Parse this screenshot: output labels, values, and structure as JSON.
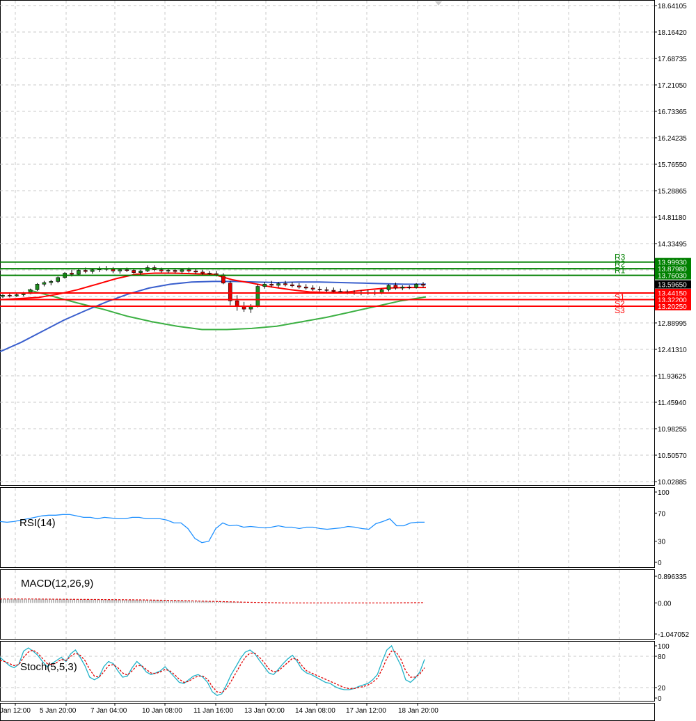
{
  "colors": {
    "resistance": "#008000",
    "support": "#ff0000",
    "price_label_bg": "#000000",
    "ma_fast": "#ff0000",
    "ma_mid": "#3a5fcd",
    "ma_slow": "#3cb043",
    "candle_up": "#1e8c1e",
    "candle_down": "#e00000",
    "rsi": "#1e90ff",
    "macd_signal": "#e00000",
    "stoch_main": "#20b2c8",
    "stoch_signal": "#e00000",
    "grid": "#c8c8c8"
  },
  "chart_data": [
    {
      "type": "candlestick",
      "name": "price",
      "grid": true,
      "ylim": [
        10.02885,
        18.64105
      ],
      "y_ticks": [
        "18.64105",
        "18.16420",
        "17.68735",
        "17.21050",
        "16.73365",
        "16.24235",
        "15.76550",
        "15.28865",
        "14.81180",
        "14.33495",
        "13.85810",
        "13.38125",
        "12.88995",
        "12.41310",
        "11.93625",
        "11.45940",
        "10.98255",
        "10.50570",
        "10.02885"
      ],
      "x_labels": [
        "Jan 12:00",
        "5 Jan 20:00",
        "7 Jan 04:00",
        "10 Jan 08:00",
        "11 Jan 16:00",
        "13 Jan 00:00",
        "14 Jan 08:00",
        "17 Jan 12:00",
        "18 Jan 20:00"
      ],
      "current_price": {
        "value": 13.5965,
        "label": "13.59650"
      },
      "levels": [
        {
          "name": "R3",
          "value": 13.9993,
          "label": "13.99930",
          "kind": "resistance"
        },
        {
          "name": "R2",
          "value": 13.8798,
          "label": "13.87980",
          "kind": "resistance"
        },
        {
          "name": "R1",
          "value": 13.7603,
          "label": "13.76030",
          "kind": "resistance"
        },
        {
          "name": "S1",
          "value": 13.4415,
          "label": "13.44150",
          "kind": "support"
        },
        {
          "name": "S2",
          "value": 13.322,
          "label": "13.32200",
          "kind": "support"
        },
        {
          "name": "S3",
          "value": 13.2025,
          "label": "13.20250",
          "kind": "support"
        }
      ],
      "candles": [
        [
          13.38,
          13.42,
          13.35,
          13.4
        ],
        [
          13.4,
          13.43,
          13.36,
          13.39
        ],
        [
          13.39,
          13.44,
          13.37,
          13.41
        ],
        [
          13.41,
          13.46,
          13.38,
          13.43
        ],
        [
          13.43,
          13.52,
          13.42,
          13.5
        ],
        [
          13.5,
          13.62,
          13.48,
          13.6
        ],
        [
          13.6,
          13.66,
          13.56,
          13.63
        ],
        [
          13.63,
          13.68,
          13.58,
          13.65
        ],
        [
          13.65,
          13.74,
          13.62,
          13.72
        ],
        [
          13.72,
          13.82,
          13.7,
          13.8
        ],
        [
          13.8,
          13.86,
          13.74,
          13.78
        ],
        [
          13.78,
          13.88,
          13.75,
          13.85
        ],
        [
          13.85,
          13.9,
          13.8,
          13.83
        ],
        [
          13.83,
          13.89,
          13.79,
          13.86
        ],
        [
          13.86,
          13.92,
          13.82,
          13.88
        ],
        [
          13.88,
          13.93,
          13.84,
          13.87
        ],
        [
          13.87,
          13.91,
          13.8,
          13.84
        ],
        [
          13.84,
          13.88,
          13.79,
          13.86
        ],
        [
          13.86,
          13.9,
          13.82,
          13.85
        ],
        [
          13.85,
          13.88,
          13.79,
          13.81
        ],
        [
          13.81,
          13.86,
          13.77,
          13.84
        ],
        [
          13.84,
          13.94,
          13.82,
          13.9
        ],
        [
          13.9,
          13.94,
          13.83,
          13.86
        ],
        [
          13.86,
          13.9,
          13.81,
          13.84
        ],
        [
          13.84,
          13.88,
          13.8,
          13.85
        ],
        [
          13.85,
          13.89,
          13.8,
          13.83
        ],
        [
          13.83,
          13.88,
          13.79,
          13.86
        ],
        [
          13.86,
          13.9,
          13.81,
          13.84
        ],
        [
          13.84,
          13.87,
          13.79,
          13.82
        ],
        [
          13.82,
          13.86,
          13.77,
          13.8
        ],
        [
          13.8,
          13.84,
          13.76,
          13.79
        ],
        [
          13.79,
          13.84,
          13.74,
          13.77
        ],
        [
          13.77,
          13.8,
          13.6,
          13.62
        ],
        [
          13.62,
          13.66,
          13.22,
          13.3
        ],
        [
          13.3,
          13.4,
          13.12,
          13.2
        ],
        [
          13.2,
          13.28,
          13.1,
          13.15
        ],
        [
          13.15,
          13.24,
          13.08,
          13.2
        ],
        [
          13.2,
          13.6,
          13.18,
          13.56
        ],
        [
          13.56,
          13.64,
          13.52,
          13.6
        ],
        [
          13.6,
          13.66,
          13.55,
          13.58
        ],
        [
          13.58,
          13.64,
          13.54,
          13.61
        ],
        [
          13.61,
          13.66,
          13.56,
          13.59
        ],
        [
          13.59,
          13.64,
          13.54,
          13.57
        ],
        [
          13.57,
          13.62,
          13.52,
          13.55
        ],
        [
          13.55,
          13.6,
          13.5,
          13.53
        ],
        [
          13.53,
          13.58,
          13.48,
          13.51
        ],
        [
          13.51,
          13.56,
          13.47,
          13.5
        ],
        [
          13.5,
          13.55,
          13.46,
          13.49
        ],
        [
          13.49,
          13.54,
          13.45,
          13.47
        ],
        [
          13.47,
          13.52,
          13.43,
          13.46
        ],
        [
          13.46,
          13.5,
          13.42,
          13.45
        ],
        [
          13.45,
          13.49,
          13.41,
          13.44
        ],
        [
          13.44,
          13.49,
          13.4,
          13.45
        ],
        [
          13.45,
          13.5,
          13.41,
          13.44
        ],
        [
          13.44,
          13.49,
          13.4,
          13.45
        ],
        [
          13.45,
          13.52,
          13.42,
          13.5
        ],
        [
          13.5,
          13.6,
          13.47,
          13.58
        ],
        [
          13.58,
          13.63,
          13.5,
          13.53
        ],
        [
          13.53,
          13.58,
          13.49,
          13.55
        ],
        [
          13.55,
          13.58,
          13.51,
          13.54
        ],
        [
          13.54,
          13.62,
          13.52,
          13.6
        ],
        [
          13.6,
          13.64,
          13.54,
          13.58
        ]
      ],
      "ma_fast": [
        13.32,
        13.34,
        13.36,
        13.42,
        13.5,
        13.6,
        13.7,
        13.78,
        13.8,
        13.8,
        13.79,
        13.78,
        13.68,
        13.62,
        13.55,
        13.5,
        13.46,
        13.45,
        13.46,
        13.5,
        13.53,
        13.54,
        13.54
      ],
      "ma_mid": [
        12.38,
        12.55,
        12.75,
        12.95,
        13.12,
        13.28,
        13.42,
        13.53,
        13.6,
        13.64,
        13.65,
        13.65,
        13.64,
        13.63,
        13.64,
        13.64,
        13.63,
        13.62,
        13.61,
        13.6,
        13.6
      ],
      "ma_slow": [
        13.5,
        13.38,
        13.26,
        13.15,
        13.02,
        12.92,
        12.84,
        12.78,
        12.78,
        12.8,
        12.84,
        12.92,
        13.0,
        13.1,
        13.2,
        13.3,
        13.37
      ]
    },
    {
      "type": "line",
      "name": "RSI(14)",
      "ylim": [
        0,
        100
      ],
      "y_ticks": [
        "100",
        "70",
        "30",
        "0"
      ],
      "values": [
        58,
        57,
        58,
        60,
        62,
        64,
        66,
        67,
        67,
        68,
        68,
        66,
        64,
        64,
        62,
        64,
        63,
        62,
        62,
        64,
        64,
        62,
        62,
        62,
        60,
        56,
        56,
        48,
        34,
        28,
        30,
        48,
        56,
        52,
        53,
        50,
        51,
        50,
        49,
        50,
        52,
        50,
        50,
        48,
        50,
        50,
        48,
        47,
        48,
        49,
        51,
        50,
        48,
        47,
        55,
        58,
        62,
        52,
        52,
        56,
        57,
        57
      ]
    },
    {
      "type": "bar",
      "name": "MACD(12,26,9)",
      "ylim": [
        -1.047052,
        0.896335
      ],
      "y_ticks": [
        "0.896335",
        "0.00",
        "-1.047052"
      ],
      "bar_value": 0.13,
      "signal_values": [
        0.13,
        0.13,
        0.12,
        0.11,
        0.1,
        0.08,
        0.05,
        0.02,
        0.0,
        0.0,
        0.0,
        0.0,
        0.01
      ]
    },
    {
      "type": "line",
      "name": "Stoch(5,5,3)",
      "ylim": [
        0,
        100
      ],
      "y_ticks": [
        "100",
        "80",
        "20",
        "0"
      ],
      "main": [
        78,
        70,
        62,
        58,
        65,
        90,
        96,
        90,
        82,
        70,
        60,
        66,
        72,
        78,
        70,
        85,
        92,
        78,
        62,
        40,
        35,
        40,
        60,
        70,
        66,
        52,
        40,
        42,
        58,
        70,
        62,
        50,
        45,
        48,
        52,
        60,
        50,
        40,
        30,
        28,
        35,
        42,
        45,
        40,
        30,
        12,
        5,
        8,
        25,
        45,
        60,
        76,
        88,
        92,
        85,
        72,
        60,
        48,
        45,
        55,
        66,
        75,
        82,
        70,
        55,
        48,
        45,
        40,
        35,
        30,
        28,
        22,
        18,
        16,
        16,
        18,
        22,
        25,
        28,
        35,
        45,
        70,
        92,
        100,
        80,
        62,
        35,
        30,
        38,
        50,
        74
      ],
      "signal": [
        72,
        70,
        66,
        62,
        64,
        78,
        88,
        92,
        86,
        76,
        66,
        64,
        68,
        74,
        72,
        80,
        86,
        82,
        72,
        55,
        42,
        40,
        50,
        62,
        64,
        58,
        48,
        44,
        52,
        62,
        62,
        55,
        48,
        47,
        50,
        55,
        52,
        45,
        36,
        30,
        32,
        38,
        42,
        42,
        36,
        22,
        12,
        10,
        18,
        32,
        48,
        64,
        78,
        86,
        86,
        78,
        68,
        56,
        50,
        52,
        60,
        68,
        76,
        74,
        62,
        52,
        48,
        44,
        40,
        36,
        32,
        28,
        24,
        20,
        18,
        18,
        20,
        22,
        25,
        30,
        38,
        55,
        76,
        90,
        88,
        74,
        52,
        40,
        40,
        46,
        58
      ]
    }
  ]
}
